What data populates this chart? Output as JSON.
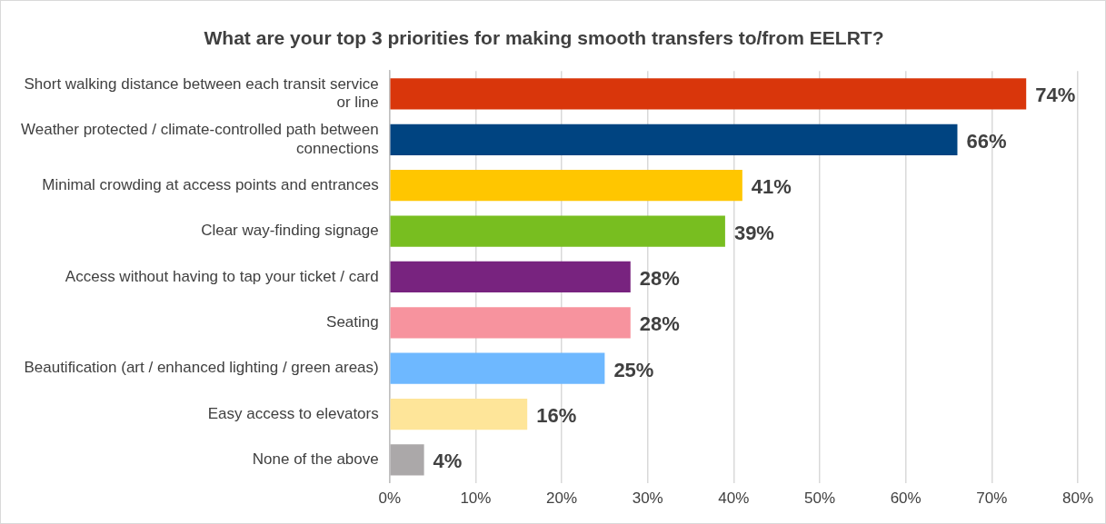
{
  "chart_data": {
    "type": "bar",
    "orientation": "horizontal",
    "title": "What are your top 3 priorities for making smooth transfers to/from EELRT?",
    "categories": [
      "Short walking distance between each transit service or line",
      "Weather protected / climate-controlled path between connections",
      "Minimal crowding at access points and entrances",
      "Clear way-finding signage",
      "Access without having to tap your ticket / card",
      "Seating",
      "Beautification (art / enhanced lighting / green areas)",
      "Easy access to elevators",
      "None of the above"
    ],
    "values": [
      74,
      66,
      41,
      39,
      28,
      28,
      25,
      16,
      4
    ],
    "value_labels": [
      "74%",
      "66%",
      "41%",
      "39%",
      "28%",
      "28%",
      "25%",
      "16%",
      "4%"
    ],
    "colors": [
      "#d9360b",
      "#004481",
      "#ffc600",
      "#78be20",
      "#78237f",
      "#f7939e",
      "#6eb8ff",
      "#fee599",
      "#aba8a9"
    ],
    "xlim": [
      0,
      80
    ],
    "xticks": [
      {
        "value": 0,
        "label": "0%"
      },
      {
        "value": 10,
        "label": "10%"
      },
      {
        "value": 20,
        "label": "20%"
      },
      {
        "value": 30,
        "label": "30%"
      },
      {
        "value": 40,
        "label": "40%"
      },
      {
        "value": 50,
        "label": "50%"
      },
      {
        "value": 60,
        "label": "60%"
      },
      {
        "value": 70,
        "label": "70%"
      },
      {
        "value": 80,
        "label": "80%"
      }
    ],
    "grid": "x",
    "legend": false
  }
}
